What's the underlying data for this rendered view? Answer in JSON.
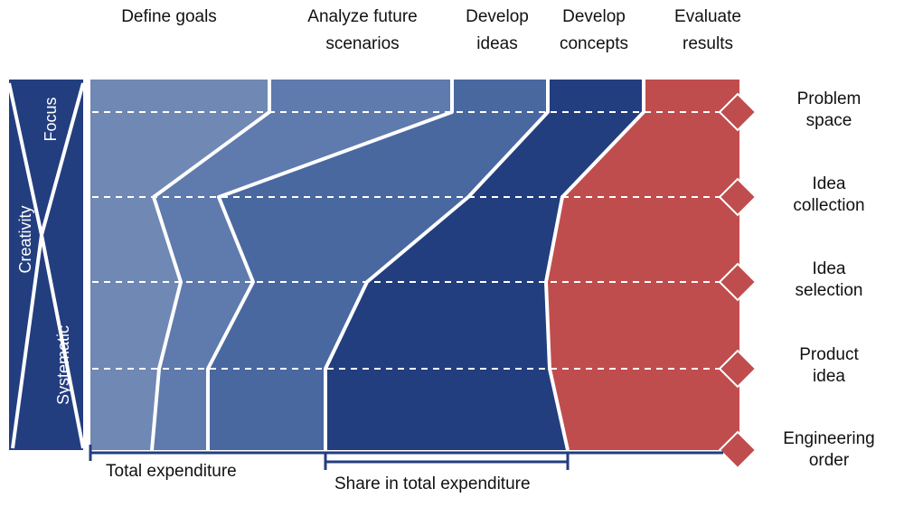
{
  "phases": [
    {
      "label": "Define goals",
      "color": "#7088b4"
    },
    {
      "label": "Analyze future\nscenarios",
      "color": "#5f7aad"
    },
    {
      "label": "Develop\nideas",
      "color": "#4968a0"
    },
    {
      "label": "Develop\nconcepts",
      "color": "#233e7f"
    },
    {
      "label": "Evaluate\nresults",
      "color": "#c04d4e"
    }
  ],
  "stages": [
    "Problem space",
    "Idea collection",
    "Idea selection",
    "Product idea",
    "Engineering\norder"
  ],
  "side_panel": {
    "creativity_label": "Creativity",
    "focus_label": "Focus",
    "systematic_label": "Systematic",
    "color": "#233e7f"
  },
  "bottom": {
    "total_label": "Total expenditure",
    "share_label": "Share in total expenditure"
  },
  "diamond_color": "#c04d4e"
}
